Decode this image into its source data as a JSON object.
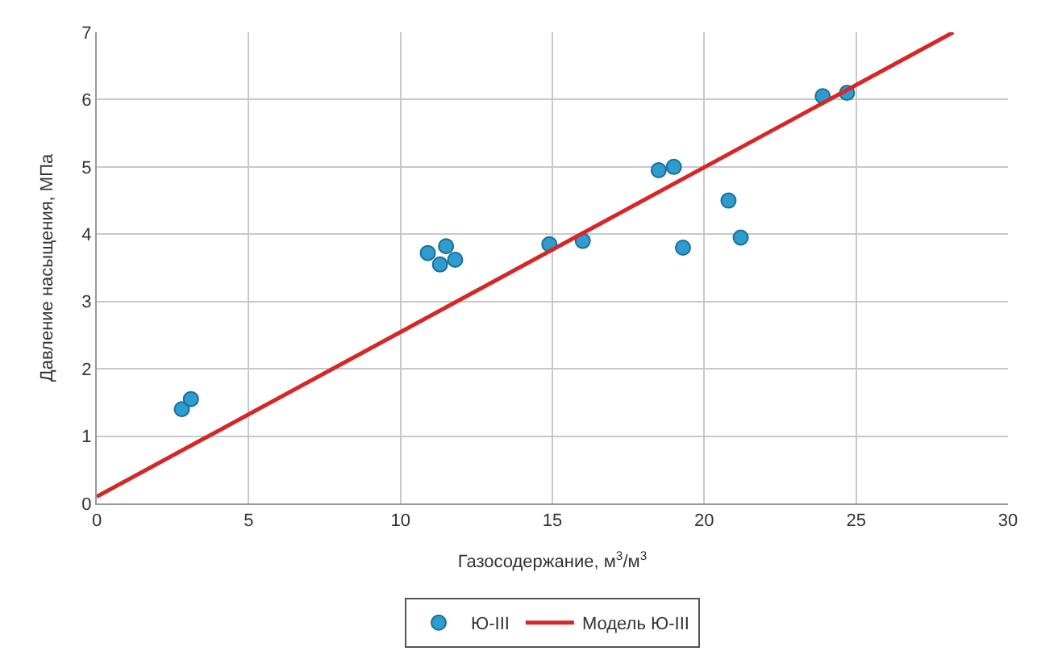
{
  "chart_data": {
    "type": "scatter",
    "xlabel": "Газосодержание, м$^{3}$/м$^{3}$",
    "ylabel": "Давление насыщения, МПа",
    "xlim": [
      0,
      30
    ],
    "xticks": [
      0,
      5,
      10,
      15,
      20,
      25,
      30
    ],
    "ylim": [
      0,
      7
    ],
    "yticks": [
      0,
      1,
      2,
      3,
      4,
      5,
      6,
      7
    ],
    "grid": true,
    "legend": "bottom",
    "series": [
      {
        "name": "Ю-III",
        "color": "#2e9ccf",
        "marker": "circle",
        "x": [
          2.8,
          3.1,
          10.9,
          11.5,
          11.3,
          11.8,
          14.9,
          16.0,
          18.5,
          19.0,
          19.3,
          20.8,
          21.2,
          23.9,
          24.7
        ],
        "values": [
          1.4,
          1.55,
          3.72,
          3.82,
          3.55,
          3.62,
          3.85,
          3.9,
          4.95,
          5.0,
          3.8,
          4.5,
          3.95,
          6.05,
          6.1
        ]
      },
      {
        "name": "Модель Ю-III",
        "color": "#d62728",
        "type": "line",
        "x": [
          0,
          28.2
        ],
        "values": [
          0.1,
          7.0
        ],
        "line_style": "solid"
      }
    ]
  }
}
